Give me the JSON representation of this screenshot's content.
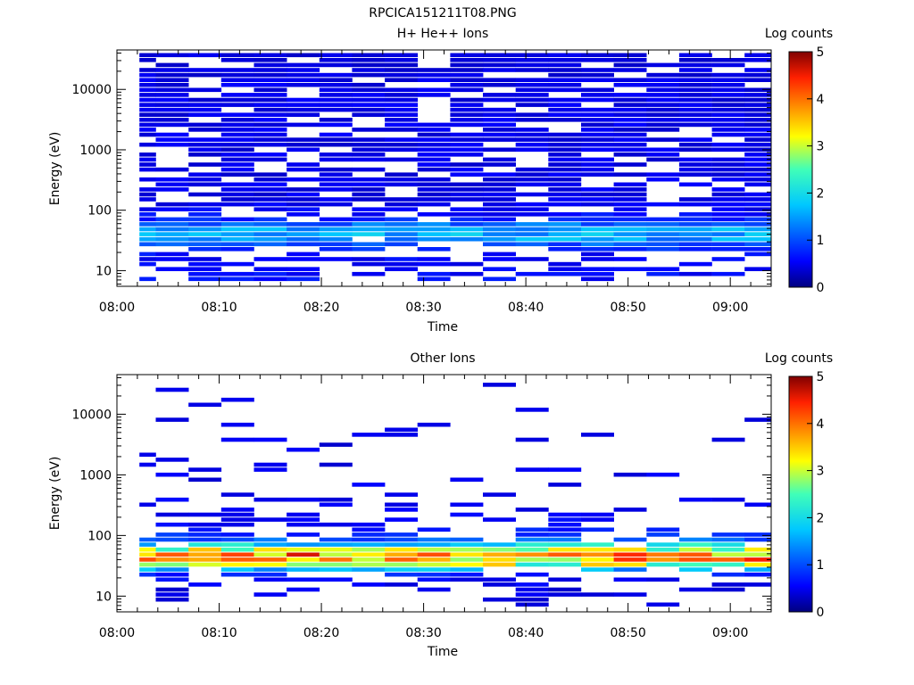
{
  "figure": {
    "title": "RPCICA151211T08.PNG"
  },
  "chart_data": [
    {
      "type": "heatmap",
      "title": "H+ He++ Ions",
      "xlabel": "Time",
      "ylabel": "Energy (eV)",
      "x_ticks": [
        "08:00",
        "08:10",
        "08:20",
        "08:30",
        "08:40",
        "08:50",
        "09:00"
      ],
      "x_tick_minutes": [
        0,
        10,
        20,
        30,
        40,
        50,
        60
      ],
      "xlim_minutes": [
        0,
        64
      ],
      "y_scale": "log",
      "ylim": [
        5.5,
        45000
      ],
      "y_ticks": [
        "10",
        "100",
        "1000",
        "10000"
      ],
      "y_tick_values": [
        10,
        100,
        1000,
        10000
      ],
      "colorbar": {
        "label": "Log counts",
        "range": [
          0,
          5
        ],
        "ticks": [
          "0",
          "1",
          "2",
          "3",
          "4",
          "5"
        ]
      },
      "time_bins_minutes": [
        2.2,
        5.4,
        8.6,
        11.8,
        15.0,
        18.2,
        21.4,
        24.6,
        27.8,
        31.0,
        34.2,
        37.4,
        40.6,
        43.8,
        47.0,
        50.2,
        53.4,
        56.6,
        59.8,
        63.0
      ],
      "profile": [
        {
          "e": 9,
          "v": 0.6,
          "p": 0.55
        },
        {
          "e": 13,
          "v": 0.55,
          "p": 0.5
        },
        {
          "e": 19,
          "v": 0.6,
          "p": 0.5
        },
        {
          "e": 25,
          "v": 0.9,
          "p": 0.75
        },
        {
          "e": 31,
          "v": 1.45,
          "p": 0.9
        },
        {
          "e": 38,
          "v": 1.55,
          "p": 1.0
        },
        {
          "e": 46,
          "v": 1.65,
          "p": 1.0
        },
        {
          "e": 56,
          "v": 1.25,
          "p": 0.95
        },
        {
          "e": 68,
          "v": 0.75,
          "p": 0.85
        },
        {
          "e": 85,
          "v": 0.6,
          "p": 0.75
        },
        {
          "e": 110,
          "v": 0.5,
          "p": 0.65
        },
        {
          "e": 160,
          "v": 0.45,
          "p": 0.7
        },
        {
          "e": 260,
          "v": 0.45,
          "p": 0.7
        },
        {
          "e": 450,
          "v": 0.45,
          "p": 0.72
        },
        {
          "e": 800,
          "v": 0.45,
          "p": 0.75
        },
        {
          "e": 1500,
          "v": 0.45,
          "p": 0.75
        },
        {
          "e": 3000,
          "v": 0.45,
          "p": 0.78
        },
        {
          "e": 6000,
          "v": 0.45,
          "p": 0.8
        },
        {
          "e": 12000,
          "v": 0.45,
          "p": 0.8
        },
        {
          "e": 24000,
          "v": 0.4,
          "p": 0.78
        },
        {
          "e": 40000,
          "v": 0.4,
          "p": 0.75
        }
      ],
      "seed": 7
    },
    {
      "type": "heatmap",
      "title": "Other Ions",
      "xlabel": "Time",
      "ylabel": "Energy (eV)",
      "x_ticks": [
        "08:00",
        "08:10",
        "08:20",
        "08:30",
        "08:40",
        "08:50",
        "09:00"
      ],
      "x_tick_minutes": [
        0,
        10,
        20,
        30,
        40,
        50,
        60
      ],
      "xlim_minutes": [
        0,
        64
      ],
      "y_scale": "log",
      "ylim": [
        5.5,
        45000
      ],
      "y_ticks": [
        "10",
        "100",
        "1000",
        "10000"
      ],
      "y_tick_values": [
        10,
        100,
        1000,
        10000
      ],
      "colorbar": {
        "label": "Log counts",
        "range": [
          0,
          5
        ],
        "ticks": [
          "0",
          "1",
          "2",
          "3",
          "4",
          "5"
        ]
      },
      "time_bins_minutes": [
        2.2,
        5.4,
        8.6,
        11.8,
        15.0,
        18.2,
        21.4,
        24.6,
        27.8,
        31.0,
        34.2,
        37.4,
        40.6,
        43.8,
        47.0,
        50.2,
        53.4,
        56.6,
        59.8,
        63.0
      ],
      "profile": [
        {
          "e": 9,
          "v": 0.4,
          "p": 0.2
        },
        {
          "e": 13,
          "v": 0.45,
          "p": 0.3
        },
        {
          "e": 19,
          "v": 0.55,
          "p": 0.45
        },
        {
          "e": 25,
          "v": 0.9,
          "p": 0.6
        },
        {
          "e": 29,
          "v": 2.1,
          "p": 0.95
        },
        {
          "e": 34,
          "v": 3.1,
          "p": 1.0
        },
        {
          "e": 40,
          "v": 3.75,
          "p": 1.0
        },
        {
          "e": 47,
          "v": 3.9,
          "p": 1.0
        },
        {
          "e": 55,
          "v": 3.2,
          "p": 1.0
        },
        {
          "e": 66,
          "v": 2.2,
          "p": 0.95
        },
        {
          "e": 80,
          "v": 1.2,
          "p": 0.8
        },
        {
          "e": 100,
          "v": 0.8,
          "p": 0.5
        },
        {
          "e": 140,
          "v": 0.6,
          "p": 0.35
        },
        {
          "e": 220,
          "v": 0.5,
          "p": 0.22
        },
        {
          "e": 400,
          "v": 0.5,
          "p": 0.15
        },
        {
          "e": 800,
          "v": 0.45,
          "p": 0.12
        },
        {
          "e": 1600,
          "v": 0.45,
          "p": 0.1
        },
        {
          "e": 3000,
          "v": 0.45,
          "p": 0.08
        },
        {
          "e": 6000,
          "v": 0.4,
          "p": 0.05
        },
        {
          "e": 12000,
          "v": 0.4,
          "p": 0.04
        },
        {
          "e": 22000,
          "v": 0.4,
          "p": 0.03
        }
      ],
      "seed": 23
    }
  ]
}
